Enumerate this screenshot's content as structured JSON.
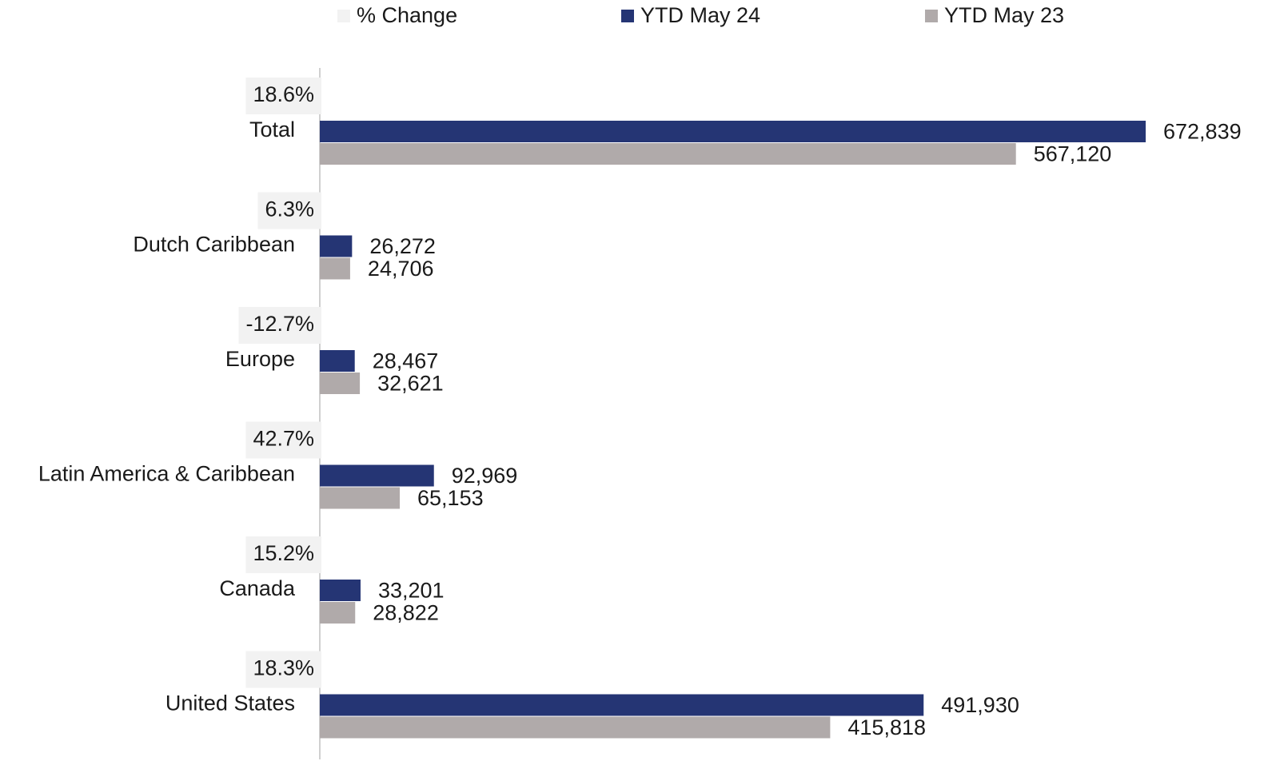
{
  "chart_data": {
    "type": "bar",
    "categories": [
      "Total",
      "Dutch Caribbean",
      "Europe",
      "Latin America & Caribbean",
      "Canada",
      "United States"
    ],
    "series": [
      {
        "name": "% Change",
        "type": "label",
        "color": "#f2f2f2",
        "values": [
          18.6,
          6.3,
          -12.7,
          42.7,
          15.2,
          18.3
        ],
        "value_labels": [
          "18.6%",
          "6.3%",
          "-12.7%",
          "42.7%",
          "15.2%",
          "18.3%"
        ]
      },
      {
        "name": "YTD May 24",
        "color": "#253574",
        "values": [
          672839,
          26272,
          28467,
          92969,
          33201,
          491930
        ],
        "value_labels": [
          "672,839",
          "26,272",
          "28,467",
          "92,969",
          "33,201",
          "491,930"
        ]
      },
      {
        "name": "YTD May 23",
        "color": "#b0aaaa",
        "values": [
          567120,
          24706,
          32621,
          65153,
          28822,
          415818
        ],
        "value_labels": [
          "567,120",
          "24,706",
          "32,621",
          "65,153",
          "28,822",
          "415,818"
        ]
      }
    ]
  }
}
